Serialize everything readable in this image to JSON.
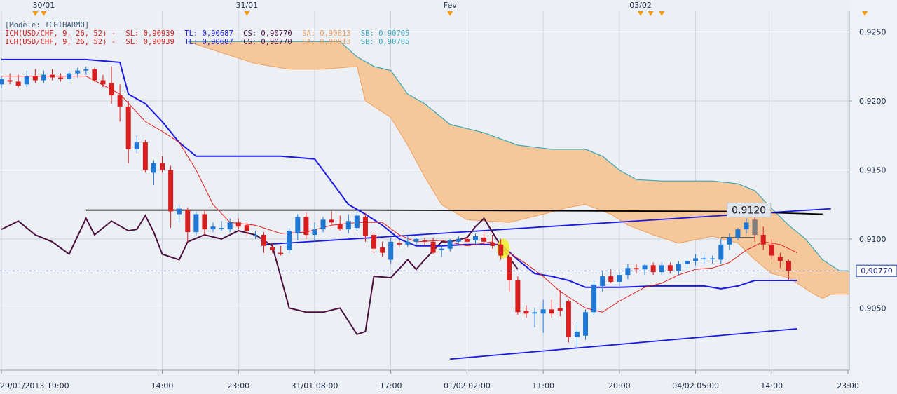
{
  "header": {
    "model_label": "[Modèle: ICHIHARMO]"
  },
  "legend": [
    {
      "prefix": "ICH(USD/CHF, 9, 26, 52) -",
      "sl": "SL: 0,90939",
      "tl": "TL: 0,90687",
      "cs": "CS: 0,90770",
      "sa": "SA: 0,90813",
      "sb": "SB: 0,90705"
    },
    {
      "prefix": "ICH(USD/CHF, 9, 26, 52) -",
      "sl": "SL: 0,90939",
      "tl": "TL: 0,90687",
      "cs": "CS: 0,90770",
      "sa": "SA: 0,90813",
      "sb": "SB: 0,90705"
    }
  ],
  "colors": {
    "background": "#eceff4",
    "grid": "#c9cfd9",
    "bull": "#1e78d4",
    "bear": "#d81e1e",
    "tenkan": "#e31e1e",
    "kijun": "#1a1ae0",
    "chikou": "#4a1040",
    "cloud_fill": "#f5c89b",
    "cloud_edge_a": "#f0a060",
    "cloud_edge_b": "#3aa6b9",
    "trendline": "#1a1ae0",
    "resistance": "#000000",
    "marker": "#f39c12"
  },
  "chart_data": {
    "type": "candlestick",
    "symbol": "USD/CHF",
    "ylim": [
      0.9005,
      0.9265
    ],
    "y_ticks": [
      {
        "value": 0.925,
        "label": "0,9250"
      },
      {
        "value": 0.92,
        "label": "0,9200"
      },
      {
        "value": 0.915,
        "label": "0,9150"
      },
      {
        "value": 0.91,
        "label": "0,9100"
      },
      {
        "value": 0.905,
        "label": "0,9050"
      }
    ],
    "x_ticks": [
      {
        "index": 0,
        "label": "29/01/2013 19:00"
      },
      {
        "index": 19,
        "label": "14:00"
      },
      {
        "index": 28,
        "label": "23:00"
      },
      {
        "index": 37,
        "label": "31/01 08:00"
      },
      {
        "index": 46,
        "label": "17:00"
      },
      {
        "index": 55,
        "label": "01/02 02:00"
      },
      {
        "index": 64,
        "label": "11:00"
      },
      {
        "index": 73,
        "label": "20:00"
      },
      {
        "index": 82,
        "label": "04/02 05:00"
      },
      {
        "index": 91,
        "label": "14:00"
      },
      {
        "index": 100,
        "label": "23:00"
      }
    ],
    "date_markers": [
      {
        "index": 5,
        "label": "30/01"
      },
      {
        "index": 29,
        "label": "31/01"
      },
      {
        "index": 53,
        "label": "Fev"
      },
      {
        "index": 75.5,
        "label": "03/02"
      }
    ],
    "extra_arrow_markers": [
      4,
      76.7,
      78,
      102
    ],
    "price_marker": {
      "value": 0.9077,
      "label": "0,90770"
    },
    "annotation": {
      "value": 0.912,
      "label": "0.9120"
    },
    "candles": [
      {
        "o": 0.9212,
        "h": 0.9218,
        "l": 0.9209,
        "c": 0.9216
      },
      {
        "o": 0.9215,
        "h": 0.922,
        "l": 0.9212,
        "c": 0.9214
      },
      {
        "o": 0.9214,
        "h": 0.9219,
        "l": 0.921,
        "c": 0.9211
      },
      {
        "o": 0.9212,
        "h": 0.9222,
        "l": 0.921,
        "c": 0.9218
      },
      {
        "o": 0.9218,
        "h": 0.9223,
        "l": 0.9213,
        "c": 0.9215
      },
      {
        "o": 0.9215,
        "h": 0.9222,
        "l": 0.9213,
        "c": 0.9219
      },
      {
        "o": 0.9219,
        "h": 0.9223,
        "l": 0.9215,
        "c": 0.9217
      },
      {
        "o": 0.9217,
        "h": 0.922,
        "l": 0.9214,
        "c": 0.9216
      },
      {
        "o": 0.9216,
        "h": 0.9222,
        "l": 0.9213,
        "c": 0.922
      },
      {
        "o": 0.922,
        "h": 0.9224,
        "l": 0.9217,
        "c": 0.9222
      },
      {
        "o": 0.9222,
        "h": 0.9225,
        "l": 0.9219,
        "c": 0.9223
      },
      {
        "o": 0.9223,
        "h": 0.9224,
        "l": 0.9214,
        "c": 0.9215
      },
      {
        "o": 0.9215,
        "h": 0.9219,
        "l": 0.921,
        "c": 0.9212
      },
      {
        "o": 0.9213,
        "h": 0.9225,
        "l": 0.9198,
        "c": 0.9204
      },
      {
        "o": 0.9204,
        "h": 0.9212,
        "l": 0.9185,
        "c": 0.9196
      },
      {
        "o": 0.9196,
        "h": 0.92,
        "l": 0.9155,
        "c": 0.9165
      },
      {
        "o": 0.9165,
        "h": 0.9175,
        "l": 0.9162,
        "c": 0.917
      },
      {
        "o": 0.917,
        "h": 0.9172,
        "l": 0.9148,
        "c": 0.915
      },
      {
        "o": 0.9148,
        "h": 0.9157,
        "l": 0.9139,
        "c": 0.9155
      },
      {
        "o": 0.9155,
        "h": 0.916,
        "l": 0.9148,
        "c": 0.915
      },
      {
        "o": 0.915,
        "h": 0.9153,
        "l": 0.9108,
        "c": 0.912
      },
      {
        "o": 0.9118,
        "h": 0.9125,
        "l": 0.9112,
        "c": 0.9122
      },
      {
        "o": 0.9121,
        "h": 0.9123,
        "l": 0.9097,
        "c": 0.9105
      },
      {
        "o": 0.9105,
        "h": 0.912,
        "l": 0.9102,
        "c": 0.9118
      },
      {
        "o": 0.9118,
        "h": 0.9121,
        "l": 0.9102,
        "c": 0.9107
      },
      {
        "o": 0.9107,
        "h": 0.9112,
        "l": 0.9105,
        "c": 0.9109
      },
      {
        "o": 0.9108,
        "h": 0.9113,
        "l": 0.9106,
        "c": 0.9108
      },
      {
        "o": 0.9107,
        "h": 0.9115,
        "l": 0.9105,
        "c": 0.9112
      },
      {
        "o": 0.9112,
        "h": 0.9115,
        "l": 0.9107,
        "c": 0.9109
      },
      {
        "o": 0.911,
        "h": 0.9112,
        "l": 0.9102,
        "c": 0.9106
      },
      {
        "o": 0.9103,
        "h": 0.9106,
        "l": 0.91,
        "c": 0.9103
      },
      {
        "o": 0.9103,
        "h": 0.9105,
        "l": 0.909,
        "c": 0.9095
      },
      {
        "o": 0.9094,
        "h": 0.9097,
        "l": 0.909,
        "c": 0.9092
      },
      {
        "o": 0.909,
        "h": 0.9095,
        "l": 0.9088,
        "c": 0.9089
      },
      {
        "o": 0.9092,
        "h": 0.9108,
        "l": 0.909,
        "c": 0.9106
      },
      {
        "o": 0.9104,
        "h": 0.9118,
        "l": 0.9099,
        "c": 0.9116
      },
      {
        "o": 0.9116,
        "h": 0.9119,
        "l": 0.91,
        "c": 0.9103
      },
      {
        "o": 0.9103,
        "h": 0.9112,
        "l": 0.9098,
        "c": 0.9107
      },
      {
        "o": 0.9107,
        "h": 0.9116,
        "l": 0.9105,
        "c": 0.9114
      },
      {
        "o": 0.9114,
        "h": 0.912,
        "l": 0.911,
        "c": 0.9112
      },
      {
        "o": 0.9111,
        "h": 0.9117,
        "l": 0.9106,
        "c": 0.9107
      },
      {
        "o": 0.9107,
        "h": 0.9118,
        "l": 0.9104,
        "c": 0.9113
      },
      {
        "o": 0.9108,
        "h": 0.9119,
        "l": 0.9106,
        "c": 0.9117
      },
      {
        "o": 0.9116,
        "h": 0.9119,
        "l": 0.9098,
        "c": 0.9102
      },
      {
        "o": 0.9103,
        "h": 0.9105,
        "l": 0.909,
        "c": 0.9093
      },
      {
        "o": 0.9094,
        "h": 0.9098,
        "l": 0.9087,
        "c": 0.909
      },
      {
        "o": 0.9085,
        "h": 0.9101,
        "l": 0.9082,
        "c": 0.9098
      },
      {
        "o": 0.9097,
        "h": 0.9099,
        "l": 0.9094,
        "c": 0.9096
      },
      {
        "o": 0.9096,
        "h": 0.9102,
        "l": 0.9094,
        "c": 0.9098
      },
      {
        "o": 0.9098,
        "h": 0.9101,
        "l": 0.9096,
        "c": 0.91
      },
      {
        "o": 0.9099,
        "h": 0.9101,
        "l": 0.9095,
        "c": 0.9098
      },
      {
        "o": 0.9098,
        "h": 0.9101,
        "l": 0.9089,
        "c": 0.909
      },
      {
        "o": 0.9092,
        "h": 0.9095,
        "l": 0.9087,
        "c": 0.9093
      },
      {
        "o": 0.9093,
        "h": 0.91,
        "l": 0.9091,
        "c": 0.9099
      },
      {
        "o": 0.9098,
        "h": 0.9102,
        "l": 0.9096,
        "c": 0.91
      },
      {
        "o": 0.91,
        "h": 0.9102,
        "l": 0.9096,
        "c": 0.9098
      },
      {
        "o": 0.9099,
        "h": 0.9104,
        "l": 0.9096,
        "c": 0.9102
      },
      {
        "o": 0.9101,
        "h": 0.9106,
        "l": 0.9096,
        "c": 0.9098
      },
      {
        "o": 0.9097,
        "h": 0.9103,
        "l": 0.9093,
        "c": 0.9095
      },
      {
        "o": 0.9096,
        "h": 0.91,
        "l": 0.9085,
        "c": 0.9088
      },
      {
        "o": 0.9087,
        "h": 0.9089,
        "l": 0.9062,
        "c": 0.907
      },
      {
        "o": 0.907,
        "h": 0.9073,
        "l": 0.9045,
        "c": 0.9047
      },
      {
        "o": 0.9048,
        "h": 0.9052,
        "l": 0.9043,
        "c": 0.9046
      },
      {
        "o": 0.9046,
        "h": 0.905,
        "l": 0.9036,
        "c": 0.9047
      },
      {
        "o": 0.9046,
        "h": 0.9056,
        "l": 0.9032,
        "c": 0.9049
      },
      {
        "o": 0.9049,
        "h": 0.9056,
        "l": 0.9043,
        "c": 0.9046
      },
      {
        "o": 0.905,
        "h": 0.9063,
        "l": 0.9044,
        "c": 0.9048
      },
      {
        "o": 0.9055,
        "h": 0.9056,
        "l": 0.9025,
        "c": 0.9029
      },
      {
        "o": 0.9029,
        "h": 0.904,
        "l": 0.9021,
        "c": 0.9033
      },
      {
        "o": 0.903,
        "h": 0.9049,
        "l": 0.9027,
        "c": 0.9047
      },
      {
        "o": 0.9047,
        "h": 0.907,
        "l": 0.9045,
        "c": 0.9067
      },
      {
        "o": 0.9066,
        "h": 0.9077,
        "l": 0.9062,
        "c": 0.9073
      },
      {
        "o": 0.9073,
        "h": 0.9078,
        "l": 0.9068,
        "c": 0.9069
      },
      {
        "o": 0.9069,
        "h": 0.9076,
        "l": 0.9066,
        "c": 0.9074
      },
      {
        "o": 0.9074,
        "h": 0.9082,
        "l": 0.9071,
        "c": 0.9079
      },
      {
        "o": 0.9079,
        "h": 0.9082,
        "l": 0.9075,
        "c": 0.9078
      },
      {
        "o": 0.9078,
        "h": 0.9082,
        "l": 0.9074,
        "c": 0.9081
      },
      {
        "o": 0.9081,
        "h": 0.9083,
        "l": 0.9074,
        "c": 0.9076
      },
      {
        "o": 0.9076,
        "h": 0.9083,
        "l": 0.9074,
        "c": 0.9081
      },
      {
        "o": 0.9081,
        "h": 0.9083,
        "l": 0.9075,
        "c": 0.9077
      },
      {
        "o": 0.9077,
        "h": 0.9084,
        "l": 0.9074,
        "c": 0.9082
      },
      {
        "o": 0.9082,
        "h": 0.9086,
        "l": 0.9079,
        "c": 0.9084
      },
      {
        "o": 0.9084,
        "h": 0.9089,
        "l": 0.9081,
        "c": 0.9086
      },
      {
        "o": 0.9086,
        "h": 0.9089,
        "l": 0.9082,
        "c": 0.9086
      },
      {
        "o": 0.9086,
        "h": 0.9088,
        "l": 0.9082,
        "c": 0.9086
      },
      {
        "o": 0.9085,
        "h": 0.91,
        "l": 0.9082,
        "c": 0.9096
      },
      {
        "o": 0.9096,
        "h": 0.9104,
        "l": 0.9092,
        "c": 0.9101
      },
      {
        "o": 0.9101,
        "h": 0.9108,
        "l": 0.9099,
        "c": 0.9107
      },
      {
        "o": 0.9107,
        "h": 0.9115,
        "l": 0.9104,
        "c": 0.9112
      },
      {
        "o": 0.9114,
        "h": 0.9118,
        "l": 0.9098,
        "c": 0.9103
      },
      {
        "o": 0.9103,
        "h": 0.9109,
        "l": 0.9092,
        "c": 0.9096
      },
      {
        "o": 0.9096,
        "h": 0.91,
        "l": 0.9085,
        "c": 0.9088
      },
      {
        "o": 0.9087,
        "h": 0.909,
        "l": 0.9079,
        "c": 0.9084
      },
      {
        "o": 0.9084,
        "h": 0.9085,
        "l": 0.907,
        "c": 0.9077
      }
    ],
    "tenkan": [
      [
        0,
        0.9218
      ],
      [
        10,
        0.9218
      ],
      [
        14,
        0.9205
      ],
      [
        17,
        0.9185
      ],
      [
        19,
        0.9178
      ],
      [
        21,
        0.917
      ],
      [
        23,
        0.915
      ],
      [
        25,
        0.9125
      ],
      [
        27,
        0.9112
      ],
      [
        30,
        0.911
      ],
      [
        33,
        0.9104
      ],
      [
        36,
        0.9105
      ],
      [
        39,
        0.911
      ],
      [
        42,
        0.9112
      ],
      [
        45,
        0.9112
      ],
      [
        47,
        0.9103
      ],
      [
        49,
        0.9098
      ],
      [
        52,
        0.9099
      ],
      [
        55,
        0.9095
      ],
      [
        58,
        0.9098
      ],
      [
        60,
        0.909
      ],
      [
        62,
        0.9082
      ],
      [
        64,
        0.9073
      ],
      [
        66,
        0.9062
      ],
      [
        69,
        0.905
      ],
      [
        71,
        0.9047
      ],
      [
        73,
        0.9055
      ],
      [
        76,
        0.9065
      ],
      [
        78,
        0.9068
      ],
      [
        80,
        0.9074
      ],
      [
        82,
        0.9078
      ],
      [
        84,
        0.9079
      ],
      [
        86,
        0.9083
      ],
      [
        88,
        0.9092
      ],
      [
        90,
        0.9098
      ],
      [
        92,
        0.9096
      ],
      [
        94,
        0.909
      ]
    ],
    "kijun": [
      [
        0,
        0.923
      ],
      [
        10,
        0.923
      ],
      [
        14,
        0.9228
      ],
      [
        15,
        0.9205
      ],
      [
        17,
        0.9198
      ],
      [
        19,
        0.9185
      ],
      [
        21,
        0.917
      ],
      [
        23,
        0.916
      ],
      [
        25,
        0.916
      ],
      [
        33,
        0.916
      ],
      [
        37,
        0.9158
      ],
      [
        41,
        0.9125
      ],
      [
        43,
        0.9118
      ],
      [
        45,
        0.911
      ],
      [
        47,
        0.91
      ],
      [
        49,
        0.9095
      ],
      [
        52,
        0.9095
      ],
      [
        55,
        0.9096
      ],
      [
        59,
        0.9096
      ],
      [
        61,
        0.9085
      ],
      [
        63,
        0.9075
      ],
      [
        65,
        0.9073
      ],
      [
        67,
        0.907
      ],
      [
        69,
        0.9065
      ],
      [
        73,
        0.9065
      ],
      [
        77,
        0.9066
      ],
      [
        83,
        0.9066
      ],
      [
        85,
        0.9064
      ],
      [
        87,
        0.9066
      ],
      [
        89,
        0.907
      ],
      [
        94,
        0.907
      ]
    ],
    "chikou": [
      [
        0,
        0.9107
      ],
      [
        2,
        0.9113
      ],
      [
        4,
        0.9103
      ],
      [
        6,
        0.9098
      ],
      [
        8,
        0.9089
      ],
      [
        10,
        0.9115
      ],
      [
        11,
        0.9103
      ],
      [
        13,
        0.9113
      ],
      [
        15,
        0.9106
      ],
      [
        16,
        0.9107
      ],
      [
        17,
        0.9117
      ],
      [
        18,
        0.9105
      ],
      [
        19,
        0.9089
      ],
      [
        21,
        0.9085
      ],
      [
        22,
        0.9098
      ],
      [
        24,
        0.9103
      ],
      [
        26,
        0.91
      ],
      [
        28,
        0.9106
      ],
      [
        30,
        0.9103
      ],
      [
        32,
        0.9095
      ],
      [
        34,
        0.905
      ],
      [
        36,
        0.9047
      ],
      [
        38,
        0.9047
      ],
      [
        40,
        0.905
      ],
      [
        42,
        0.9031
      ],
      [
        43,
        0.9033
      ],
      [
        44,
        0.9073
      ],
      [
        46,
        0.9072
      ],
      [
        48,
        0.9085
      ],
      [
        49,
        0.9078
      ],
      [
        50,
        0.9085
      ],
      [
        52,
        0.9098
      ],
      [
        53,
        0.9098
      ],
      [
        55,
        0.9101
      ],
      [
        56,
        0.9109
      ],
      [
        57,
        0.9115
      ],
      [
        59,
        0.9095
      ],
      [
        61,
        0.9078
      ]
    ],
    "senkou_a": [
      [
        22,
        0.9243
      ],
      [
        26,
        0.9235
      ],
      [
        30,
        0.9227
      ],
      [
        34,
        0.9223
      ],
      [
        38,
        0.9223
      ],
      [
        42,
        0.9225
      ],
      [
        43,
        0.92
      ],
      [
        46,
        0.9188
      ],
      [
        48,
        0.9168
      ],
      [
        50,
        0.9145
      ],
      [
        52,
        0.9125
      ],
      [
        55,
        0.9114
      ],
      [
        60,
        0.9112
      ],
      [
        64,
        0.9118
      ],
      [
        67,
        0.9123
      ],
      [
        69,
        0.9125
      ],
      [
        72,
        0.9118
      ],
      [
        74,
        0.911
      ],
      [
        77,
        0.9103
      ],
      [
        80,
        0.9097
      ],
      [
        84,
        0.9102
      ],
      [
        87,
        0.9097
      ],
      [
        89,
        0.9085
      ],
      [
        91,
        0.9075
      ],
      [
        93,
        0.9072
      ],
      [
        96,
        0.906
      ],
      [
        97,
        0.9057
      ],
      [
        98,
        0.906
      ],
      [
        103,
        0.906
      ]
    ],
    "senkou_b": [
      [
        22,
        0.9243
      ],
      [
        40,
        0.9243
      ],
      [
        42,
        0.9232
      ],
      [
        44,
        0.9225
      ],
      [
        46,
        0.9222
      ],
      [
        48,
        0.9205
      ],
      [
        50,
        0.9198
      ],
      [
        53,
        0.9183
      ],
      [
        57,
        0.9177
      ],
      [
        61,
        0.9168
      ],
      [
        65,
        0.9165
      ],
      [
        69,
        0.9165
      ],
      [
        71,
        0.916
      ],
      [
        73,
        0.915
      ],
      [
        75,
        0.9143
      ],
      [
        78,
        0.9142
      ],
      [
        84,
        0.9142
      ],
      [
        87,
        0.914
      ],
      [
        89,
        0.9135
      ],
      [
        91,
        0.9122
      ],
      [
        93,
        0.911
      ],
      [
        95,
        0.91
      ],
      [
        97,
        0.9085
      ],
      [
        99,
        0.9077
      ],
      [
        100,
        0.9077
      ],
      [
        101,
        0.9074
      ],
      [
        103,
        0.9073
      ]
    ],
    "resistance_line": [
      [
        10,
        0.9121
      ],
      [
        43,
        0.9121
      ],
      [
        86,
        0.912
      ],
      [
        97,
        0.9118
      ]
    ],
    "upper_trendline": [
      [
        31,
        0.9096
      ],
      [
        98,
        0.9122
      ]
    ],
    "lower_trendline": [
      [
        53,
        0.9013
      ],
      [
        94,
        0.9035
      ]
    ],
    "short_segment": [
      [
        85,
        0.9101
      ],
      [
        89,
        0.9101
      ]
    ]
  }
}
